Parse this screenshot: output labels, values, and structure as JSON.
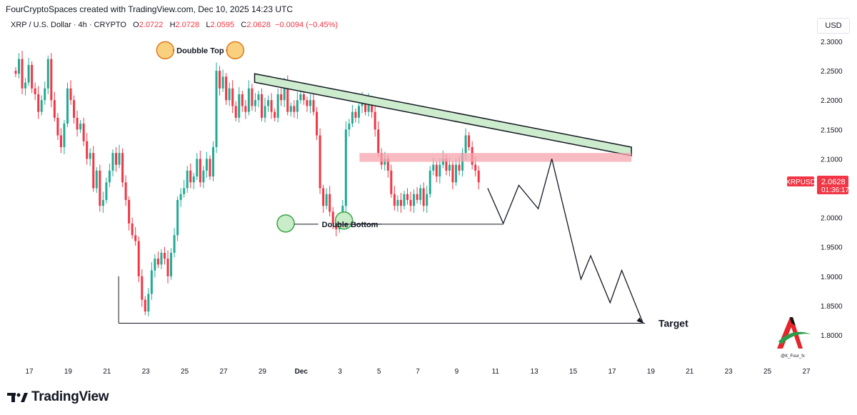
{
  "header": {
    "attribution": "FourCryptoSpaces created with TradingView.com, Dec 10, 2025 14:23 UTC"
  },
  "legend": {
    "symbol": "XRP / U.S. Dollar · 4h · CRYPTO",
    "o_label": "O",
    "o_value": "2.0722",
    "h_label": "H",
    "h_value": "2.0728",
    "l_label": "L",
    "l_value": "2.0595",
    "c_label": "C",
    "c_value": "2.0628",
    "change": "−0.0094 (−0.45%)"
  },
  "currency_button": "USD",
  "price_tag": {
    "symbol": "XRPUSD",
    "price": "2.0628",
    "countdown": "01:36:17"
  },
  "footer": {
    "brand": "TradingView"
  },
  "watermark": {
    "handle": "@K_Four_fx"
  },
  "colors": {
    "up": "#22ab94",
    "down": "#f23645",
    "trendline_fill": "#cdeccd",
    "resistance_zone": "#f7a4ad"
  },
  "chart_data": {
    "type": "candlestick",
    "title": "XRP / U.S. Dollar · 4h · CRYPTO",
    "ylim": [
      1.77,
      2.32
    ],
    "y_ticks": [
      "2.3000",
      "2.2500",
      "2.2000",
      "2.1500",
      "2.1000",
      "2.0500",
      "2.0000",
      "1.9500",
      "1.9000",
      "1.8500",
      "1.8000"
    ],
    "x_ticks": [
      "17",
      "19",
      "21",
      "23",
      "25",
      "27",
      "29",
      "Dec",
      "3",
      "5",
      "7",
      "9",
      "11",
      "13",
      "15",
      "17",
      "19",
      "21",
      "23",
      "25",
      "27"
    ],
    "candle_day_start": 16.3,
    "candles_per_day": 6,
    "closes": [
      2.245,
      2.27,
      2.22,
      2.23,
      2.26,
      2.22,
      2.21,
      2.18,
      2.2,
      2.22,
      2.27,
      2.2,
      2.17,
      2.14,
      2.12,
      2.16,
      2.22,
      2.2,
      2.17,
      2.15,
      2.16,
      2.13,
      2.1,
      2.11,
      2.05,
      2.08,
      2.02,
      2.03,
      2.06,
      2.08,
      2.11,
      2.09,
      2.11,
      2.06,
      2.03,
      1.99,
      1.97,
      1.96,
      1.9,
      1.86,
      1.84,
      1.87,
      1.91,
      1.93,
      1.92,
      1.94,
      1.93,
      1.9,
      1.94,
      1.97,
      2.03,
      2.04,
      2.05,
      2.08,
      2.06,
      2.07,
      2.1,
      2.06,
      2.08,
      2.1,
      2.07,
      2.12,
      2.25,
      2.22,
      2.24,
      2.2,
      2.22,
      2.19,
      2.17,
      2.21,
      2.19,
      2.18,
      2.22,
      2.19,
      2.2,
      2.21,
      2.17,
      2.19,
      2.2,
      2.18,
      2.17,
      2.21,
      2.2,
      2.23,
      2.18,
      2.19,
      2.18,
      2.2,
      2.21,
      2.2,
      2.19,
      2.2,
      2.18,
      2.14,
      2.05,
      2.02,
      2.04,
      2.01,
      1.99,
      1.98,
      2.0,
      2.02,
      2.15,
      2.16,
      2.18,
      2.17,
      2.19,
      2.2,
      2.18,
      2.2,
      2.18,
      2.15,
      2.11,
      2.09,
      2.1,
      2.08,
      2.04,
      2.02,
      2.03,
      2.02,
      2.04,
      2.03,
      2.02,
      2.04,
      2.03,
      2.05,
      2.02,
      2.04,
      2.08,
      2.09,
      2.07,
      2.09,
      2.1,
      2.08,
      2.09,
      2.06,
      2.09,
      2.08,
      2.11,
      2.14,
      2.12,
      2.09,
      2.08,
      2.06
    ],
    "open_first": 2.25,
    "annotations": [
      {
        "type": "label",
        "text": "Doubble Top",
        "points": [
          {
            "day": 24.0,
            "price": 2.285
          },
          {
            "day": 27.6,
            "price": 2.285
          }
        ]
      },
      {
        "type": "label",
        "text": "Double Bottom",
        "points": [
          {
            "day": 30.2,
            "price": 1.99
          },
          {
            "day": 33.2,
            "price": 1.995
          }
        ]
      },
      {
        "type": "label",
        "text": "Target",
        "price": 1.82
      },
      {
        "type": "descending_trendline",
        "from": {
          "day": 28.6,
          "price": 2.245
        },
        "to": {
          "day": 48.0,
          "price": 2.12
        }
      },
      {
        "type": "resistance_zone",
        "price_top": 2.11,
        "price_bottom": 2.095,
        "from_day": 34.0,
        "to_day": 48.0
      },
      {
        "type": "target_line",
        "price": 1.82,
        "from_day": 21.6,
        "to_day": 48.7
      },
      {
        "type": "projection_path",
        "points": [
          {
            "day": 40.6,
            "price": 2.05
          },
          {
            "day": 41.4,
            "price": 1.99
          },
          {
            "day": 42.2,
            "price": 2.055
          },
          {
            "day": 43.2,
            "price": 2.015
          },
          {
            "day": 43.9,
            "price": 2.1
          },
          {
            "day": 45.4,
            "price": 1.895
          },
          {
            "day": 45.9,
            "price": 1.935
          },
          {
            "day": 46.9,
            "price": 1.855
          },
          {
            "day": 47.5,
            "price": 1.91
          },
          {
            "day": 48.6,
            "price": 1.82
          }
        ]
      }
    ]
  }
}
